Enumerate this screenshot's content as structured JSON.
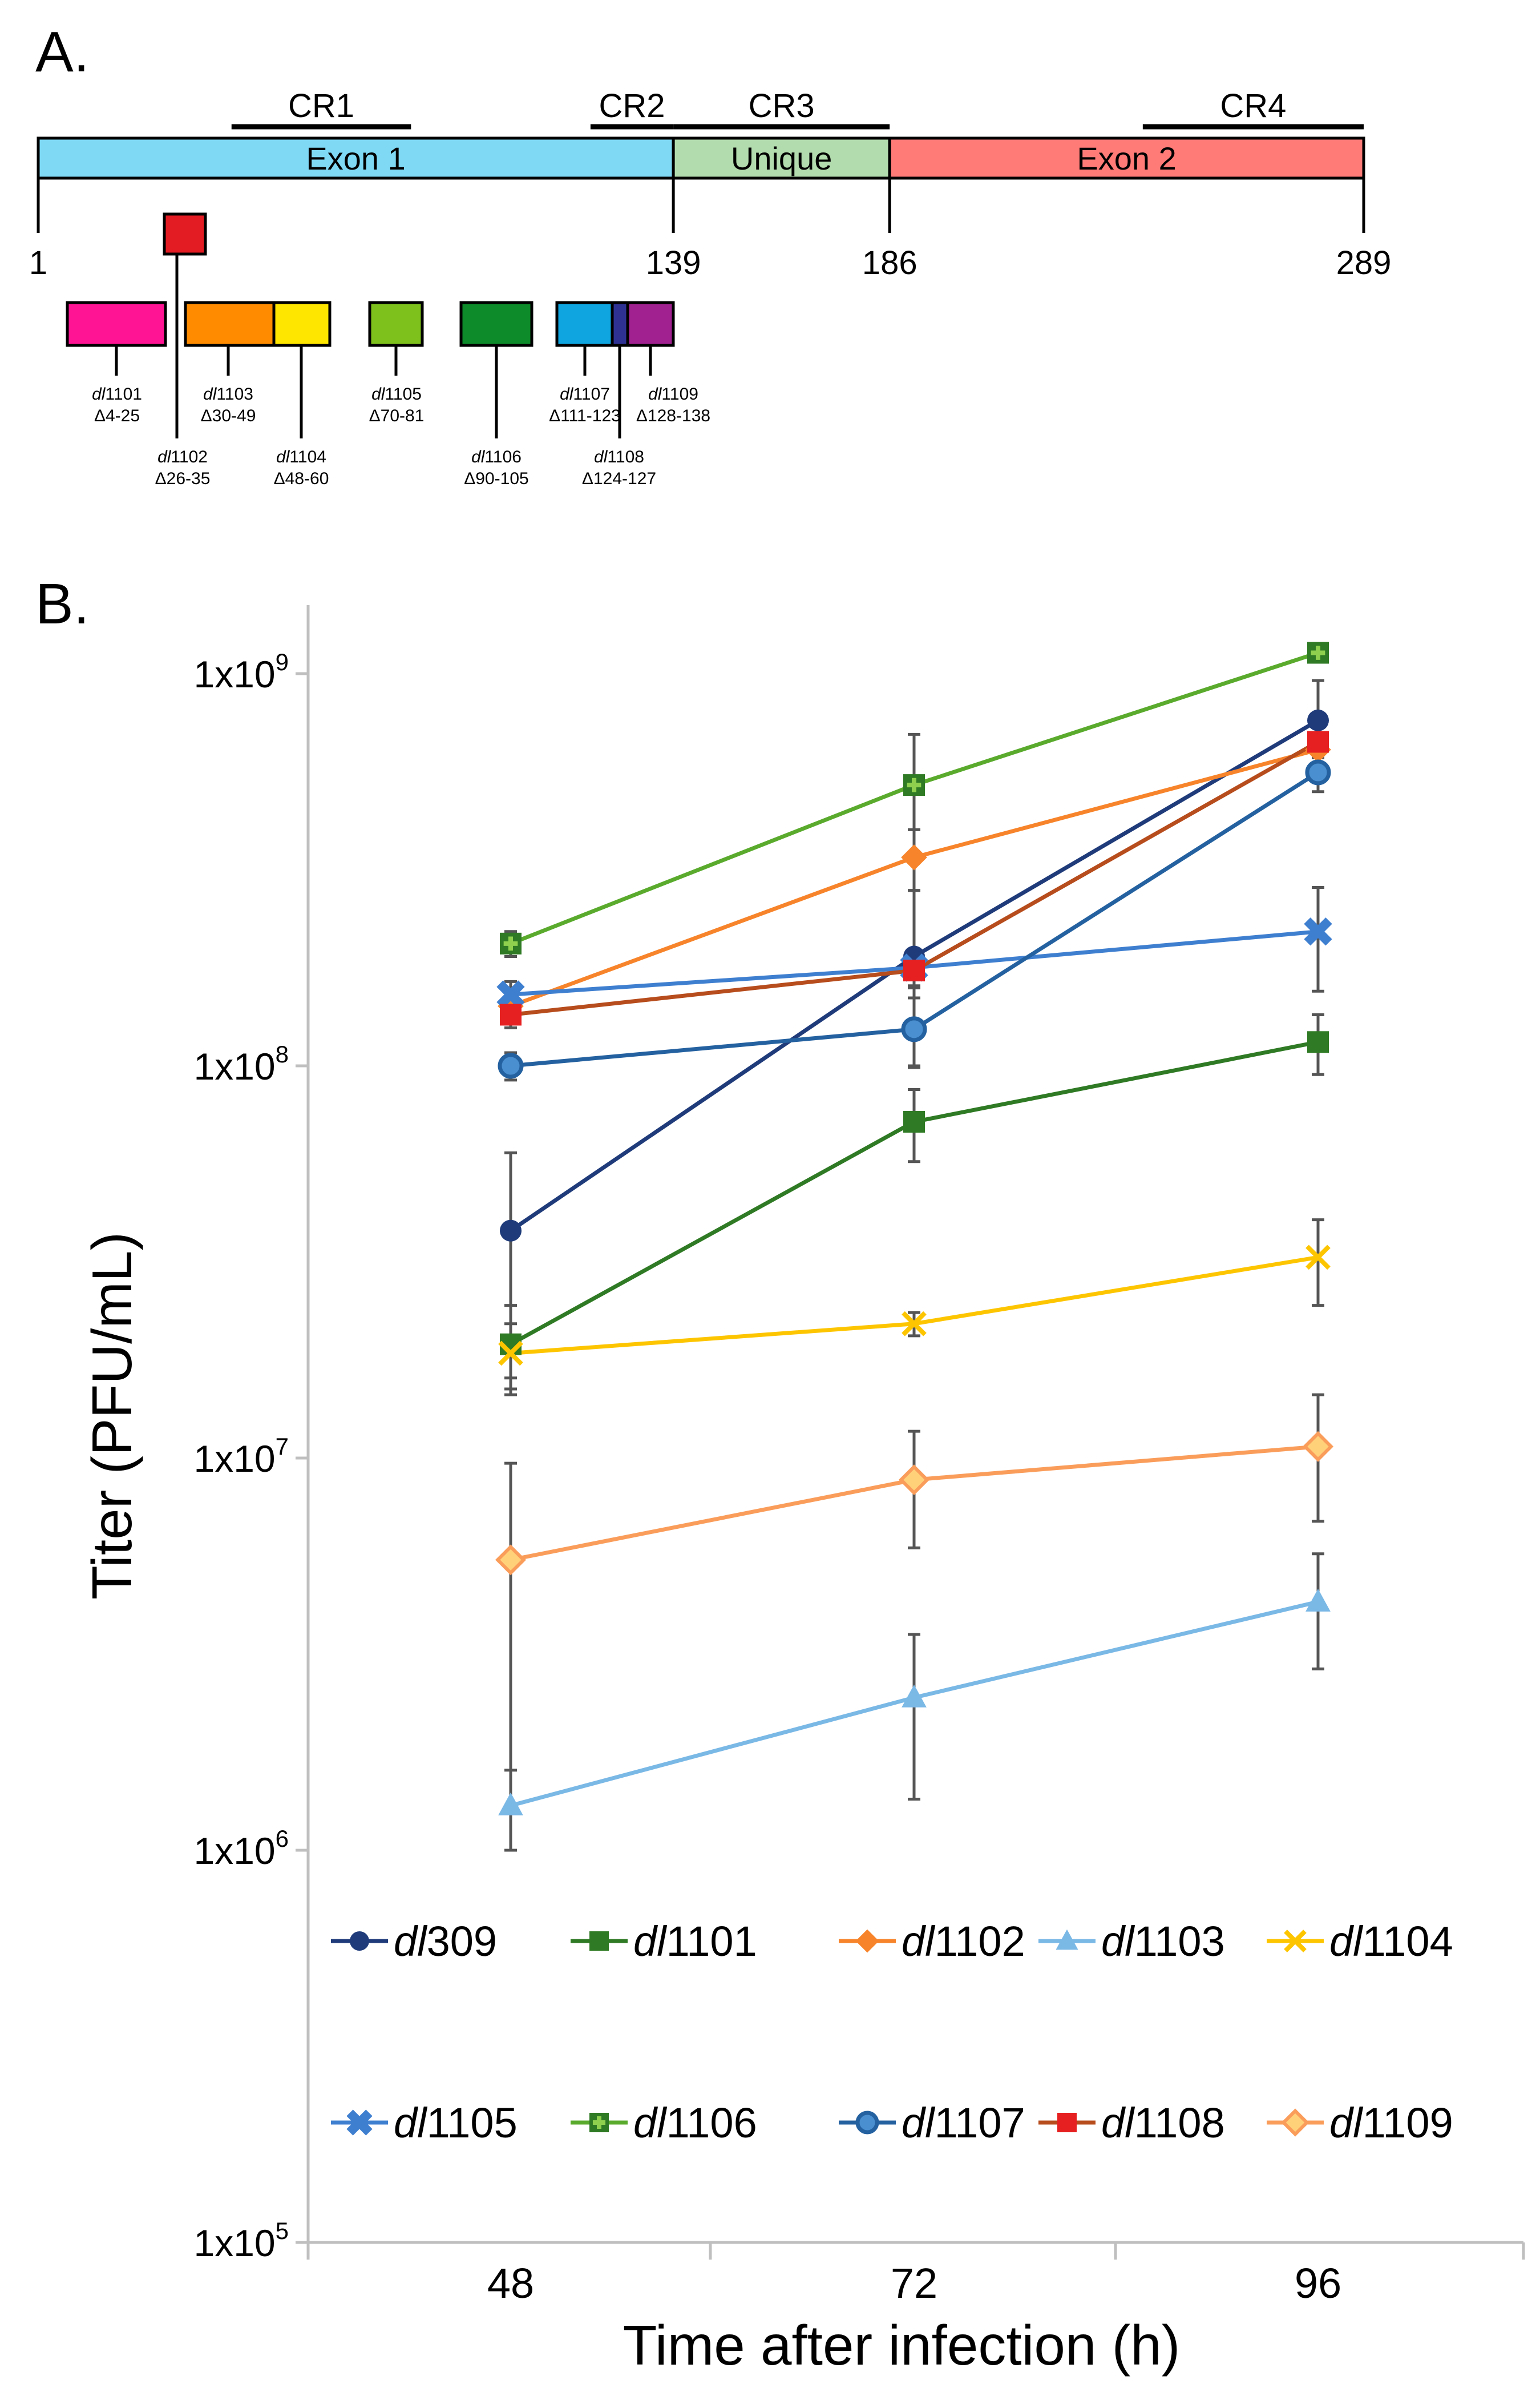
{
  "panel_a": {
    "label": "A.",
    "regions": [
      {
        "name": "Exon 1",
        "start": 1,
        "end": 139,
        "color": "#7fd9f5"
      },
      {
        "name": "Unique",
        "start": 139,
        "end": 186,
        "color": "#b3dcae"
      },
      {
        "name": "Exon 2",
        "start": 186,
        "end": 289,
        "color": "#ff7b78"
      }
    ],
    "conserved_regions": [
      {
        "name": "CR1",
        "start": 43,
        "end": 82
      },
      {
        "name": "CR2",
        "start": 121,
        "end": 139
      },
      {
        "name": "CR3",
        "start": 139,
        "end": 186
      },
      {
        "name": "CR4",
        "start": 241,
        "end": 289
      }
    ],
    "axis_ticks": [
      "1",
      "139",
      "186",
      "289"
    ],
    "deletions": [
      {
        "name": "dl",
        "num": "1101",
        "range": "Δ4-25",
        "start": 4,
        "end": 25,
        "color": "#ff1493"
      },
      {
        "name": "dl",
        "num": "1102",
        "range": "Δ26-35",
        "start": 26,
        "end": 35,
        "color": "#e31b23"
      },
      {
        "name": "dl",
        "num": "1103",
        "range": "Δ30-49",
        "start": 30,
        "end": 49,
        "color": "#ff8c00"
      },
      {
        "name": "dl",
        "num": "1104",
        "range": "Δ48-60",
        "start": 48,
        "end": 60,
        "color": "#ffe600"
      },
      {
        "name": "dl",
        "num": "1105",
        "range": "Δ70-81",
        "start": 70,
        "end": 81,
        "color": "#7ec11d"
      },
      {
        "name": "dl",
        "num": "1106",
        "range": "Δ90-105",
        "start": 90,
        "end": 105,
        "color": "#0d8a2a"
      },
      {
        "name": "dl",
        "num": "1107",
        "range": "Δ111-123",
        "start": 111,
        "end": 123,
        "color": "#0ea5e0"
      },
      {
        "name": "dl",
        "num": "1108",
        "range": "Δ124-127",
        "start": 124,
        "end": 127,
        "color": "#2e3192"
      },
      {
        "name": "dl",
        "num": "1109",
        "range": "Δ128-138",
        "start": 128,
        "end": 138,
        "color": "#a0218f"
      }
    ]
  },
  "chart_data": {
    "panel_label": "B.",
    "type": "line",
    "xlabel": "Time after infection (h)",
    "ylabel": "Titer (PFU/mL)",
    "y_scale": "log",
    "ylim": [
      100000,
      1000000000
    ],
    "y_ticks": [
      {
        "value": 100000,
        "mant": "1x10",
        "exp": "5"
      },
      {
        "value": 1000000,
        "mant": "1x10",
        "exp": "6"
      },
      {
        "value": 10000000,
        "mant": "1x10",
        "exp": "7"
      },
      {
        "value": 100000000,
        "mant": "1x10",
        "exp": "8"
      },
      {
        "value": 1000000000,
        "mant": "1x10",
        "exp": "9"
      }
    ],
    "categories": [
      "48",
      "72",
      "96"
    ],
    "series": [
      {
        "prefix": "dl",
        "num": "309",
        "color": "#1f3b7a",
        "marker": "circle",
        "values": [
          38000000,
          190000000,
          760000000
        ],
        "err": [
          22000000,
          90000000,
          200000000
        ]
      },
      {
        "prefix": "dl",
        "num": "1101",
        "color": "#2f7a24",
        "marker": "square",
        "values": [
          19500000,
          72000000,
          115000000
        ],
        "err": [
          5000000,
          15000000,
          20000000
        ]
      },
      {
        "prefix": "dl",
        "num": "1102",
        "color": "#f7842b",
        "marker": "diamond",
        "values": [
          142000000,
          340000000,
          640000000
        ],
        "err": [
          10000000,
          60000000,
          60000000
        ]
      },
      {
        "prefix": "dl",
        "num": "1103",
        "color": "#7ab8e6",
        "marker": "triangle",
        "values": [
          1300000,
          2450000,
          4300000
        ],
        "err": [
          300000,
          1100000,
          1400000
        ]
      },
      {
        "prefix": "dl",
        "num": "1104",
        "color": "#fdc500",
        "marker": "x",
        "values": [
          18500000,
          22000000,
          32500000
        ],
        "err": [
          3500000,
          1500000,
          8000000
        ]
      },
      {
        "prefix": "dl",
        "num": "1105",
        "color": "#3f7fd0",
        "marker": "xbox",
        "values": [
          152000000,
          178000000,
          220000000
        ],
        "err": [
          12000000,
          20000000,
          65000000
        ]
      },
      {
        "prefix": "dl",
        "num": "1106",
        "color": "#5aab2d",
        "marker": "plus",
        "values": [
          205000000,
          520000000,
          1130000000
        ],
        "err": [
          15000000,
          180000000,
          60000000
        ]
      },
      {
        "prefix": "dl",
        "num": "1107",
        "color": "#2461a0",
        "marker": "ocircle",
        "values": [
          100000000,
          124000000,
          560000000
        ],
        "err": [
          8000000,
          25000000,
          60000000
        ]
      },
      {
        "prefix": "dl",
        "num": "1108",
        "color": "#b74c1c",
        "marker": "redsq",
        "values": [
          135000000,
          175000000,
          670000000
        ],
        "err": [
          10000000,
          15000000,
          60000000
        ]
      },
      {
        "prefix": "dl",
        "num": "1109",
        "color": "#fa9d5b",
        "marker": "odiamond",
        "values": [
          5500000,
          8800000,
          10700000
        ],
        "err": [
          4200000,
          2900000,
          3800000
        ]
      }
    ]
  }
}
